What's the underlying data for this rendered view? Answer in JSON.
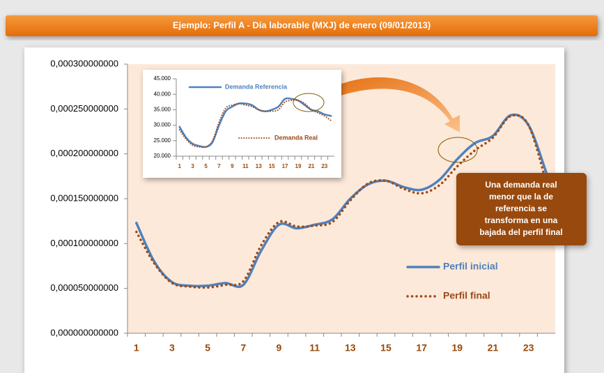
{
  "banner": {
    "title": "Ejemplo: Perfil A - Día laborable (MXJ) de enero (09/01/2013)"
  },
  "chart_data": [
    {
      "type": "line",
      "categories": [
        "1",
        null,
        "3",
        null,
        "5",
        null,
        "7",
        null,
        "9",
        null,
        "11",
        null,
        "13",
        null,
        "15",
        null,
        "17",
        null,
        "19",
        null,
        "21",
        null,
        "23",
        null
      ],
      "series": [
        {
          "name": "Perfil inicial",
          "color": "#4f81bd",
          "style": "solid",
          "values": [
            0.000123,
            8e-05,
            5.7e-05,
            5.3e-05,
            5.3e-05,
            5.6e-05,
            5.4e-05,
            9.2e-05,
            0.000121,
            0.000117,
            0.000121,
            0.000127,
            0.00015,
            0.000166,
            0.00017,
            0.000163,
            0.00016,
            0.000171,
            0.000194,
            0.000212,
            0.00022,
            0.000243,
            0.000232,
            0.000179
          ]
        },
        {
          "name": "Perfil final",
          "color": "#9c4a1a",
          "style": "dotted",
          "values": [
            0.000113,
            7.8e-05,
            5.6e-05,
            5.2e-05,
            5.1e-05,
            5.4e-05,
            5.8e-05,
            9.8e-05,
            0.000124,
            0.000119,
            0.00012,
            0.000124,
            0.000148,
            0.000167,
            0.00017,
            0.000161,
            0.000156,
            0.000165,
            0.000186,
            0.000204,
            0.000218,
            0.000242,
            0.000232,
            0.000168
          ]
        }
      ],
      "ylim": [
        0,
        0.0003
      ],
      "yticks": [
        {
          "value": 0,
          "label": "0,000000000000"
        },
        {
          "value": 5e-05,
          "label": "0,000050000000"
        },
        {
          "value": 0.0001,
          "label": "0,000100000000"
        },
        {
          "value": 0.00015,
          "label": "0,000150000000"
        },
        {
          "value": 0.0002,
          "label": "0,000200000000"
        },
        {
          "value": 0.00025,
          "label": "0,000250000000"
        },
        {
          "value": 0.0003,
          "label": "0,000300000000"
        }
      ]
    },
    {
      "type": "line",
      "categories": [
        "1",
        null,
        "3",
        null,
        "5",
        null,
        "7",
        null,
        "9",
        null,
        "11",
        null,
        "13",
        null,
        "15",
        null,
        "17",
        null,
        "19",
        null,
        "21",
        null,
        "23",
        null
      ],
      "series": [
        {
          "name": "Demanda Referencia",
          "color": "#4f81bd",
          "style": "solid",
          "values": [
            29500,
            26000,
            24000,
            23300,
            23000,
            24500,
            30000,
            34500,
            36000,
            37000,
            37000,
            36500,
            35000,
            34500,
            35000,
            36000,
            38500,
            38500,
            38000,
            36500,
            35000,
            34500,
            33500,
            33000
          ]
        },
        {
          "name": "Demanda Real",
          "color": "#9c4a1a",
          "style": "dotted",
          "values": [
            28500,
            25500,
            23500,
            23000,
            23000,
            25000,
            31000,
            35500,
            36500,
            37000,
            36500,
            36000,
            35000,
            34500,
            34500,
            35000,
            37500,
            38000,
            38000,
            37000,
            35000,
            34000,
            33000,
            31500
          ]
        }
      ],
      "ylim": [
        20000,
        45000
      ],
      "yticks": [
        {
          "value": 20000,
          "label": "20.000"
        },
        {
          "value": 25000,
          "label": "25.000"
        },
        {
          "value": 30000,
          "label": "30.000"
        },
        {
          "value": 35000,
          "label": "35.000"
        },
        {
          "value": 40000,
          "label": "40.000"
        },
        {
          "value": 45000,
          "label": "45.000"
        }
      ]
    }
  ],
  "annotation": {
    "lines": [
      "Una demanda real",
      "menor que la de",
      "referencia se",
      "transforma en una",
      "bajada del perfil final"
    ]
  }
}
